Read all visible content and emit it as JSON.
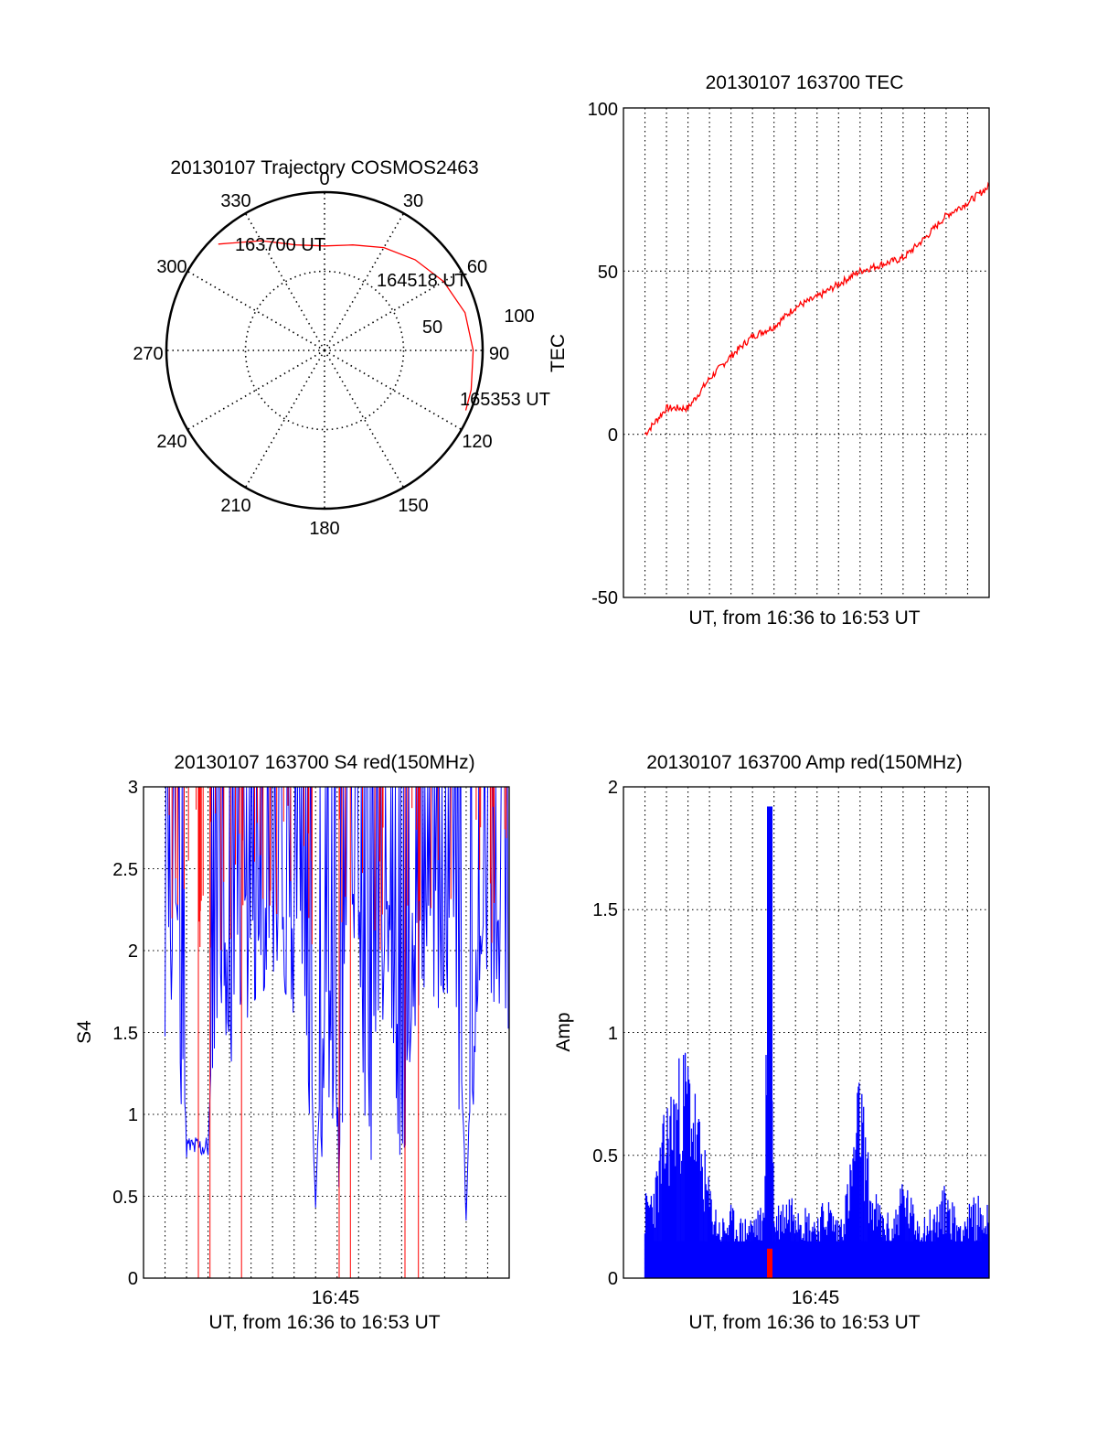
{
  "colors": {
    "red": "#ff0000",
    "blue": "#0000ff",
    "axis": "#000000",
    "grid": "#000000"
  },
  "chart_data": [
    {
      "id": "polar",
      "type": "polar-trajectory",
      "title": "20130107 Trajectory COSMOS2463",
      "azimuth_labels": [
        "0",
        "30",
        "60",
        "90",
        "120",
        "150",
        "180",
        "210",
        "240",
        "270",
        "300",
        "330"
      ],
      "radial_labels": [
        "50",
        "100"
      ],
      "radial_range": [
        0,
        100
      ],
      "point_labels": [
        "163700 UT",
        "164518 UT",
        "165353 UT"
      ],
      "trajectory": {
        "color": "red",
        "points": [
          {
            "az": 315,
            "r": 95
          },
          {
            "az": 330,
            "r": 80
          },
          {
            "az": 345,
            "r": 69
          },
          {
            "az": 0,
            "r": 66
          },
          {
            "az": 15,
            "r": 69
          },
          {
            "az": 30,
            "r": 75
          },
          {
            "az": 45,
            "r": 81
          },
          {
            "az": 60,
            "r": 87
          },
          {
            "az": 75,
            "r": 92
          },
          {
            "az": 90,
            "r": 94
          },
          {
            "az": 105,
            "r": 96
          },
          {
            "az": 113,
            "r": 97
          }
        ]
      },
      "grid": true
    },
    {
      "id": "tec",
      "type": "line",
      "title": "20130107 163700 TEC",
      "xlabel": "UT, from 16:36 to 16:53 UT",
      "ylabel": "TEC",
      "xlim": [
        0,
        17
      ],
      "ylim": [
        -50,
        100
      ],
      "yticks": [
        "-50",
        "0",
        "50",
        "100"
      ],
      "grid": true,
      "series": [
        {
          "color": "red",
          "x": [
            1,
            2,
            3,
            4,
            5,
            6,
            7,
            8,
            9,
            10,
            11,
            12,
            13,
            14,
            15,
            16,
            17
          ],
          "values": [
            0,
            8,
            8,
            17,
            24,
            30,
            33,
            39,
            42,
            46,
            50,
            52,
            54,
            60,
            67,
            71,
            76
          ]
        }
      ]
    },
    {
      "id": "s4",
      "type": "line",
      "title": "20130107 163700 S4 red(150MHz)",
      "xlabel": "UT, from 16:36 to 16:53 UT",
      "ylabel": "S4",
      "xtick_label": "16:45",
      "xlim": [
        0,
        17
      ],
      "ylim": [
        0,
        3
      ],
      "yticks": [
        "0",
        "0.5",
        "1",
        "1.5",
        "2",
        "2.5",
        "3"
      ],
      "grid": true,
      "series": [
        {
          "color": "blue",
          "x": [
            1,
            1.5,
            2,
            2.5,
            3,
            3.5,
            4,
            4.5,
            5,
            5.5,
            6,
            6.5,
            7,
            7.5,
            8,
            8.5,
            9,
            9.5,
            10,
            10.5,
            11,
            11.5,
            12,
            12.5,
            13,
            13.5,
            14,
            14.5,
            15,
            15.5,
            16,
            16.5,
            17
          ],
          "values": [
            2.2,
            2.5,
            0.8,
            0.8,
            0.8,
            2.3,
            2.0,
            2.4,
            2.3,
            2.4,
            2.5,
            2.3,
            2.4,
            2.3,
            0.5,
            2.2,
            1.0,
            2.4,
            2.5,
            1.2,
            2.3,
            2.4,
            1.1,
            2.3,
            2.4,
            2.5,
            2.2,
            2.3,
            0.4,
            2.4,
            2.5,
            2.4,
            2.3
          ]
        }
      ]
    },
    {
      "id": "amp",
      "type": "line",
      "title": "20130107 163700 Amp red(150MHz)",
      "xlabel": "UT, from 16:36 to 16:53 UT",
      "ylabel": "Amp",
      "xtick_label": "16:45",
      "xlim": [
        0,
        17
      ],
      "ylim": [
        0,
        2
      ],
      "yticks": [
        "0",
        "0.5",
        "1",
        "1.5",
        "2"
      ],
      "grid": true,
      "series": [
        {
          "color": "blue",
          "x": [
            1,
            1.5,
            2,
            2.5,
            3,
            3.5,
            4,
            4.5,
            5,
            5.5,
            6,
            6.5,
            6.8,
            7,
            7.5,
            8,
            8.5,
            9,
            9.5,
            10,
            10.5,
            11,
            11.5,
            12,
            12.5,
            13,
            13.5,
            14,
            14.5,
            15,
            15.5,
            16,
            16.5,
            17
          ],
          "values": [
            0.35,
            0.45,
            0.75,
            0.9,
            1.0,
            0.7,
            0.4,
            0.25,
            0.3,
            0.25,
            0.28,
            0.3,
            1.9,
            0.3,
            0.35,
            0.4,
            0.3,
            0.28,
            0.35,
            0.25,
            0.45,
            0.9,
            0.4,
            0.3,
            0.25,
            0.45,
            0.3,
            0.28,
            0.3,
            0.4,
            0.28,
            0.3,
            0.35,
            0.3
          ]
        }
      ]
    }
  ]
}
